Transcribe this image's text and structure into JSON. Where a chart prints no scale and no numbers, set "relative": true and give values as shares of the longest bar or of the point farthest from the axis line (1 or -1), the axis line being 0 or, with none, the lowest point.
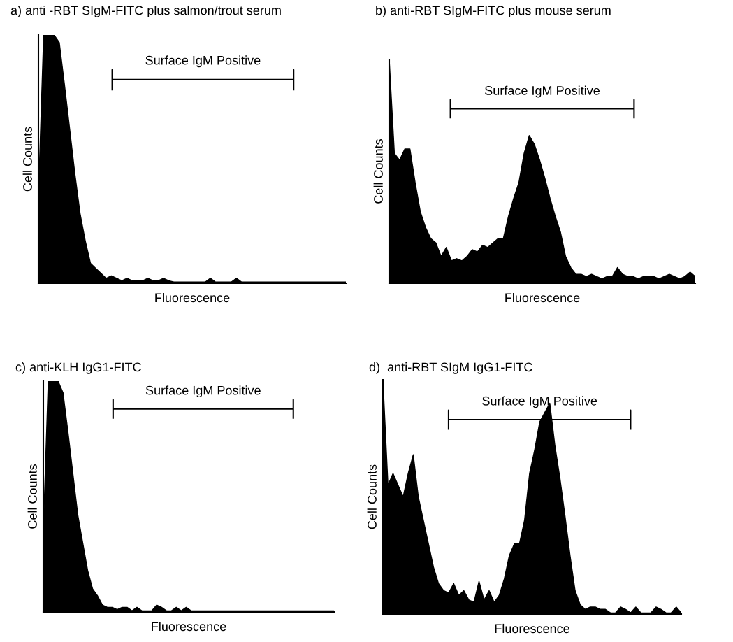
{
  "chart_data": [
    {
      "type": "area",
      "title": "a) anti -RBT SIgM-FITC plus salmon/trout serum",
      "xlabel": "Fluorescence",
      "ylabel": "Cell Counts",
      "relative": true,
      "color": "#000000",
      "annotations": [
        "Surface IgM Positive"
      ],
      "categories": [
        null,
        null,
        null,
        null,
        null,
        null,
        null,
        null,
        null,
        null,
        null,
        null,
        null,
        null,
        null,
        null,
        null,
        null,
        null,
        null,
        null,
        null,
        null,
        null,
        null,
        null,
        null,
        null,
        null,
        null,
        null,
        null,
        null,
        null,
        null,
        null,
        null,
        null,
        null,
        null,
        null,
        null,
        null,
        null,
        null,
        null,
        null,
        null,
        null,
        null,
        null,
        null,
        null,
        null,
        null,
        null,
        null,
        null,
        null,
        null
      ],
      "values": [
        0.35,
        1,
        1,
        1,
        0.97,
        0.8,
        0.62,
        0.44,
        0.28,
        0.17,
        0.08,
        0.06,
        0.04,
        0.02,
        0.03,
        0.02,
        0.01,
        0.02,
        0.01,
        0.01,
        0.01,
        0.02,
        0.01,
        0.01,
        0.02,
        0.01,
        0.005,
        0.005,
        0.005,
        0.005,
        0.005,
        0.005,
        0.005,
        0.02,
        0.005,
        0.005,
        0.005,
        0.005,
        0.02,
        0.005,
        0.005,
        0.005,
        0.005,
        0.005,
        0.005,
        0.005,
        0.005,
        0.005,
        0.005,
        0.005,
        0.005,
        0.005,
        0.005,
        0.005,
        0.005,
        0.005,
        0.005,
        0.005,
        0.005,
        0.005
      ]
    },
    {
      "type": "area",
      "title": "b) anti-RBT SIgM-FITC plus mouse serum",
      "xlabel": "Fluorescence",
      "ylabel": "Cell Counts",
      "relative": true,
      "color": "#000000",
      "annotations": [
        "Surface IgM Positive"
      ],
      "categories": [
        null,
        null,
        null,
        null,
        null,
        null,
        null,
        null,
        null,
        null,
        null,
        null,
        null,
        null,
        null,
        null,
        null,
        null,
        null,
        null,
        null,
        null,
        null,
        null,
        null,
        null,
        null,
        null,
        null,
        null,
        null,
        null,
        null,
        null,
        null,
        null,
        null,
        null,
        null,
        null,
        null,
        null,
        null,
        null,
        null,
        null,
        null,
        null,
        null,
        null,
        null,
        null,
        null,
        null,
        null,
        null,
        null,
        null,
        null,
        null
      ],
      "values": [
        1,
        0.58,
        0.55,
        0.6,
        0.6,
        0.45,
        0.32,
        0.25,
        0.2,
        0.18,
        0.12,
        0.16,
        0.1,
        0.11,
        0.1,
        0.12,
        0.15,
        0.14,
        0.17,
        0.16,
        0.18,
        0.2,
        0.2,
        0.3,
        0.38,
        0.45,
        0.58,
        0.66,
        0.62,
        0.55,
        0.47,
        0.38,
        0.3,
        0.23,
        0.12,
        0.07,
        0.04,
        0.04,
        0.03,
        0.04,
        0.03,
        0.02,
        0.03,
        0.03,
        0.07,
        0.04,
        0.03,
        0.03,
        0.02,
        0.03,
        0.03,
        0.03,
        0.02,
        0.03,
        0.04,
        0.03,
        0.02,
        0.03,
        0.05,
        0.03
      ]
    },
    {
      "type": "area",
      "title": "c) anti-KLH IgG1-FITC",
      "xlabel": "Fluorescence",
      "ylabel": "Cell Counts",
      "relative": true,
      "color": "#000000",
      "annotations": [
        "Surface IgM Positive"
      ],
      "categories": [
        null,
        null,
        null,
        null,
        null,
        null,
        null,
        null,
        null,
        null,
        null,
        null,
        null,
        null,
        null,
        null,
        null,
        null,
        null,
        null,
        null,
        null,
        null,
        null,
        null,
        null,
        null,
        null,
        null,
        null,
        null,
        null,
        null,
        null,
        null,
        null,
        null,
        null,
        null,
        null,
        null,
        null,
        null,
        null,
        null,
        null,
        null,
        null,
        null,
        null,
        null,
        null,
        null,
        null,
        null,
        null,
        null,
        null,
        null,
        null
      ],
      "values": [
        0.35,
        1,
        1,
        1,
        0.95,
        0.78,
        0.6,
        0.42,
        0.3,
        0.18,
        0.1,
        0.07,
        0.03,
        0.02,
        0.02,
        0.01,
        0.02,
        0.02,
        0.005,
        0.02,
        0.005,
        0.005,
        0.005,
        0.03,
        0.02,
        0.005,
        0.005,
        0.02,
        0.005,
        0.02,
        0.005,
        0.005,
        0.005,
        0.005,
        0.005,
        0.005,
        0.005,
        0.005,
        0.005,
        0.005,
        0.005,
        0.005,
        0.005,
        0.005,
        0.005,
        0.005,
        0.005,
        0.005,
        0.005,
        0.005,
        0.005,
        0.005,
        0.005,
        0.005,
        0.005,
        0.005,
        0.005,
        0.005,
        0.005,
        0.005
      ]
    },
    {
      "type": "area",
      "title": "d)  anti-RBT SIgM IgG1-FITC",
      "xlabel": "Fluorescence",
      "ylabel": "Cell Counts",
      "relative": true,
      "color": "#000000",
      "annotations": [
        "Surface IgM Positive"
      ],
      "categories": [
        null,
        null,
        null,
        null,
        null,
        null,
        null,
        null,
        null,
        null,
        null,
        null,
        null,
        null,
        null,
        null,
        null,
        null,
        null,
        null,
        null,
        null,
        null,
        null,
        null,
        null,
        null,
        null,
        null,
        null,
        null,
        null,
        null,
        null,
        null,
        null,
        null,
        null,
        null,
        null,
        null,
        null,
        null,
        null,
        null,
        null,
        null,
        null,
        null,
        null,
        null,
        null,
        null,
        null,
        null,
        null,
        null,
        null,
        null,
        null
      ],
      "values": [
        1,
        0.55,
        0.6,
        0.55,
        0.5,
        0.6,
        0.68,
        0.5,
        0.4,
        0.3,
        0.2,
        0.13,
        0.1,
        0.09,
        0.13,
        0.08,
        0.1,
        0.06,
        0.05,
        0.14,
        0.06,
        0.1,
        0.05,
        0.08,
        0.15,
        0.25,
        0.3,
        0.3,
        0.4,
        0.6,
        0.7,
        0.82,
        0.86,
        0.9,
        0.72,
        0.58,
        0.42,
        0.25,
        0.1,
        0.04,
        0.02,
        0.03,
        0.03,
        0.02,
        0.02,
        0.005,
        0.005,
        0.03,
        0.02,
        0.005,
        0.03,
        0.005,
        0.005,
        0.005,
        0.03,
        0.02,
        0.005,
        0.005,
        0.03,
        0.005
      ]
    }
  ]
}
